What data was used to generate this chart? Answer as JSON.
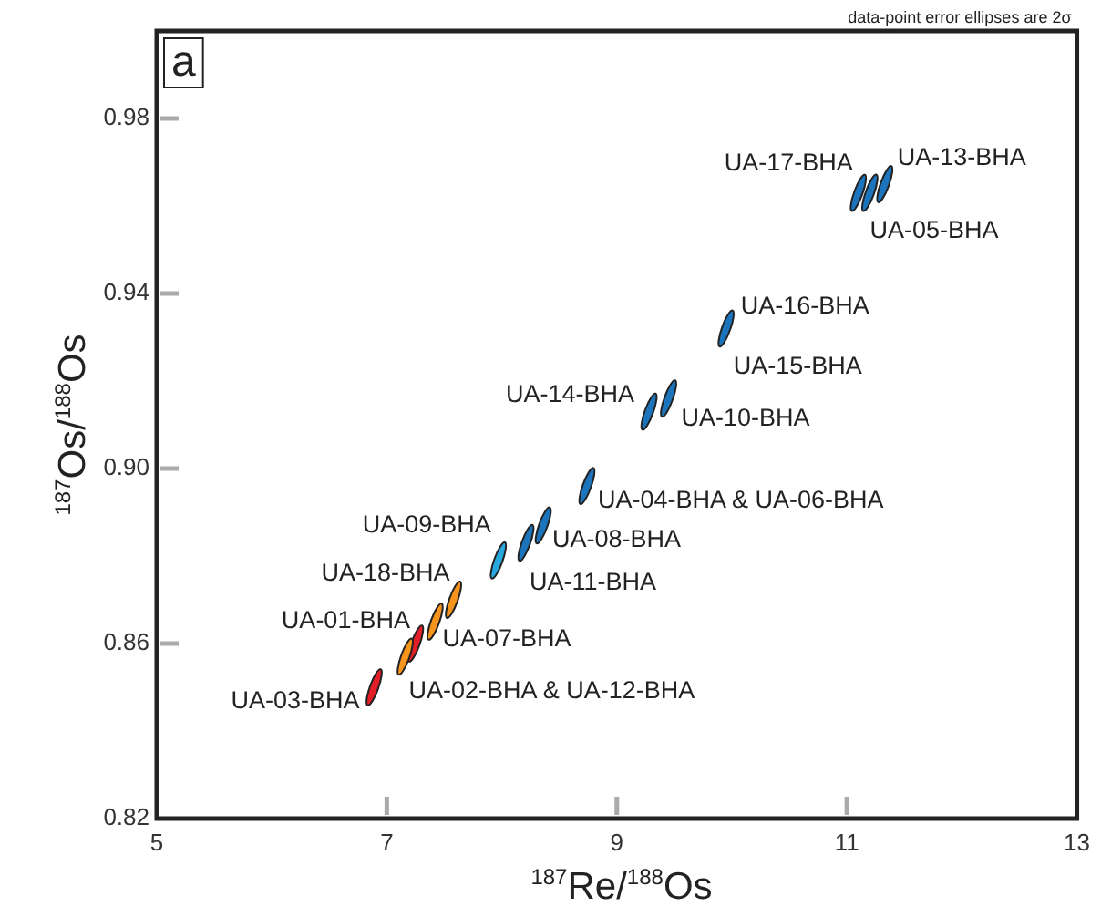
{
  "chart_data": {
    "type": "scatter",
    "xlabel": "$^{187}$Re/$^{188}$Os",
    "ylabel": "$^{187}$Os/$^{188}$Os",
    "x": [
      6.89,
      7.25,
      7.16,
      7.42,
      7.58,
      7.97,
      8.21,
      8.36,
      8.74,
      9.28,
      9.45,
      9.95,
      11.1,
      11.2,
      11.33
    ],
    "values": [
      0.85,
      0.86,
      0.857,
      0.865,
      0.87,
      0.879,
      0.883,
      0.887,
      0.896,
      0.913,
      0.916,
      0.932,
      0.963,
      0.963,
      0.965
    ],
    "colors": [
      "#e31e26",
      "#e31e26",
      "#f7941d",
      "#f7941d",
      "#f7941d",
      "#29a8e0",
      "#1c75bc",
      "#1c75bc",
      "#1c75bc",
      "#1c75bc",
      "#1c75bc",
      "#1c75bc",
      "#1c75bc",
      "#1c75bc",
      "#1c75bc"
    ],
    "xlim": [
      5,
      13
    ],
    "xticks": [
      5,
      7,
      9,
      11,
      13
    ],
    "ylim": [
      0.82,
      1.0
    ],
    "yticks": [
      0.82,
      0.86,
      {
        "value": 0.9,
        "label": "0.90"
      },
      0.94,
      0.98
    ],
    "grid": false,
    "legend": false,
    "annotations": [
      {
        "text": "UA-03-BHA",
        "x": 6.89,
        "y": 0.85
      },
      {
        "text": "UA-01-BHA",
        "x": 7.25,
        "y": 0.86
      },
      {
        "text": "UA-02-BHA & UA-12-BHA",
        "x": 7.16,
        "y": 0.857
      },
      {
        "text": "UA-07-BHA",
        "x": 7.42,
        "y": 0.865
      },
      {
        "text": "UA-18-BHA",
        "x": 7.58,
        "y": 0.87
      },
      {
        "text": "UA-09-BHA",
        "x": 7.97,
        "y": 0.879
      },
      {
        "text": "UA-11-BHA",
        "x": 8.21,
        "y": 0.883
      },
      {
        "text": "UA-08-BHA",
        "x": 8.36,
        "y": 0.887
      },
      {
        "text": "UA-04-BHA & UA-06-BHA",
        "x": 8.74,
        "y": 0.896
      },
      {
        "text": "UA-14-BHA",
        "x": 9.28,
        "y": 0.913
      },
      {
        "text": "UA-10-BHA",
        "x": 9.45,
        "y": 0.916
      },
      {
        "text": "UA-16-BHA",
        "x": 9.95,
        "y": 0.932
      },
      {
        "text": "UA-15-BHA",
        "x": 9.95,
        "y": 0.932
      },
      {
        "text": "UA-17-BHA",
        "x": 11.1,
        "y": 0.963
      },
      {
        "text": "UA-05-BHA",
        "x": 11.2,
        "y": 0.963
      },
      {
        "text": "UA-13-BHA",
        "x": 11.33,
        "y": 0.965
      },
      "a",
      "data-point error ellipses are 2σ"
    ]
  }
}
